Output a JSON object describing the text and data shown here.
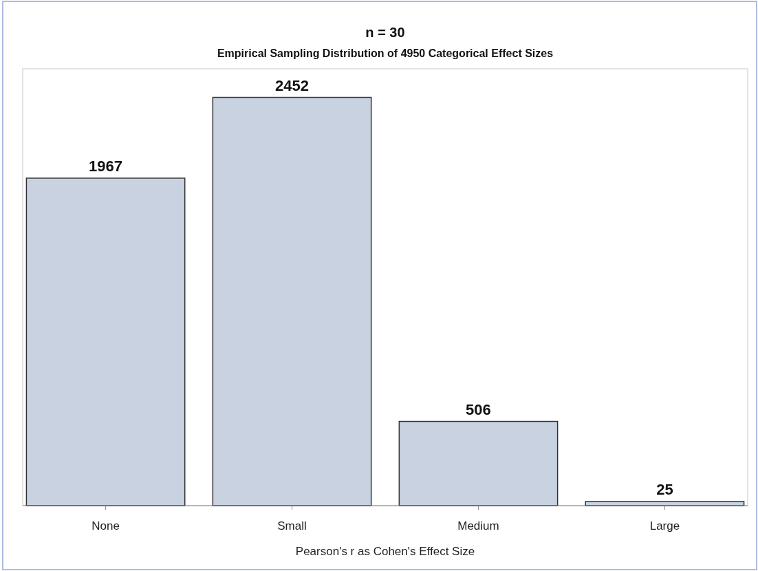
{
  "chart_data": {
    "type": "bar",
    "title": "n = 30",
    "subtitle": "Empirical Sampling Distribution of 4950 Categorical Effect Sizes",
    "xlabel": "Pearson's r as Cohen's Effect Size",
    "categories": [
      "None",
      "Small",
      "Medium",
      "Large"
    ],
    "values": [
      1967,
      2452,
      506,
      25
    ],
    "color": "#c8d2e1",
    "data_labels": true
  }
}
